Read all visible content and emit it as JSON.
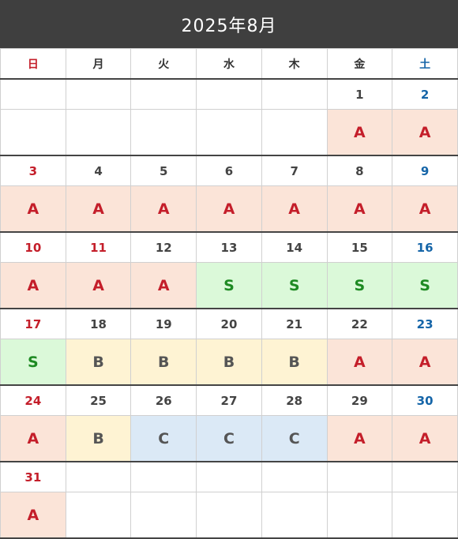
{
  "title": "2025年8月",
  "weekdays": [
    "日",
    "月",
    "火",
    "水",
    "木",
    "金",
    "土"
  ],
  "colors": {
    "header_bg": "#3f3f3f",
    "sunday_holiday": "#c41e2a",
    "saturday": "#1565a8",
    "A_bg": "#fbe4d8",
    "A_text": "#c41e2a",
    "S_bg": "#dbf9d9",
    "S_text": "#1e8a23",
    "B_bg": "#fef3d3",
    "B_text": "#555555",
    "C_bg": "#dbe9f6",
    "C_text": "#555555"
  },
  "holidays": [
    11
  ],
  "weeks": [
    [
      null,
      null,
      null,
      null,
      null,
      {
        "day": 1,
        "status": "A"
      },
      {
        "day": 2,
        "status": "A"
      }
    ],
    [
      {
        "day": 3,
        "status": "A"
      },
      {
        "day": 4,
        "status": "A"
      },
      {
        "day": 5,
        "status": "A"
      },
      {
        "day": 6,
        "status": "A"
      },
      {
        "day": 7,
        "status": "A"
      },
      {
        "day": 8,
        "status": "A"
      },
      {
        "day": 9,
        "status": "A"
      }
    ],
    [
      {
        "day": 10,
        "status": "A"
      },
      {
        "day": 11,
        "status": "A"
      },
      {
        "day": 12,
        "status": "A"
      },
      {
        "day": 13,
        "status": "S"
      },
      {
        "day": 14,
        "status": "S"
      },
      {
        "day": 15,
        "status": "S"
      },
      {
        "day": 16,
        "status": "S"
      }
    ],
    [
      {
        "day": 17,
        "status": "S"
      },
      {
        "day": 18,
        "status": "B"
      },
      {
        "day": 19,
        "status": "B"
      },
      {
        "day": 20,
        "status": "B"
      },
      {
        "day": 21,
        "status": "B"
      },
      {
        "day": 22,
        "status": "A"
      },
      {
        "day": 23,
        "status": "A"
      }
    ],
    [
      {
        "day": 24,
        "status": "A"
      },
      {
        "day": 25,
        "status": "B"
      },
      {
        "day": 26,
        "status": "C"
      },
      {
        "day": 27,
        "status": "C"
      },
      {
        "day": 28,
        "status": "C"
      },
      {
        "day": 29,
        "status": "A"
      },
      {
        "day": 30,
        "status": "A"
      }
    ],
    [
      {
        "day": 31,
        "status": "A"
      },
      null,
      null,
      null,
      null,
      null,
      null
    ]
  ]
}
